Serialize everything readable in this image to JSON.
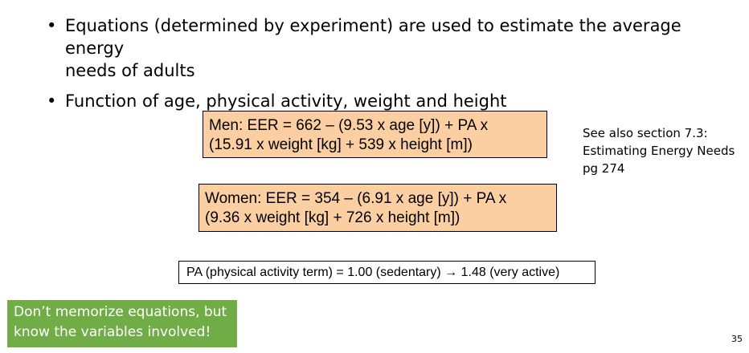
{
  "bullets": [
    {
      "marker": "•",
      "lines": [
        "Equations (determined by experiment) are used to estimate the average energy",
        "needs of adults"
      ]
    },
    {
      "marker": "•",
      "lines": [
        "Function of age, physical activity, weight and height"
      ]
    }
  ],
  "equations": {
    "men": {
      "line1": "Men: EER = 662 – (9.53 x age [y]) + PA x",
      "line2": "(15.91 x weight [kg] + 539 x height [m])"
    },
    "women": {
      "line1": "Women: EER = 354 – (6.91 x age [y]) + PA x",
      "line2": "(9.36 x weight [kg] + 726 x height [m])"
    },
    "fill_color": "#fbcfa1"
  },
  "see_also": {
    "line1": "See also section 7.3:",
    "line2": "Estimating Energy Needs",
    "line3": "pg 274"
  },
  "pa_term": "PA (physical activity term) = 1.00 (sedentary) → 1.48 (very active)",
  "note": {
    "line1": "Don’t memorize equations, but",
    "line2": "know the variables involved!",
    "fill_color": "#70ad47"
  },
  "page_number": "35"
}
